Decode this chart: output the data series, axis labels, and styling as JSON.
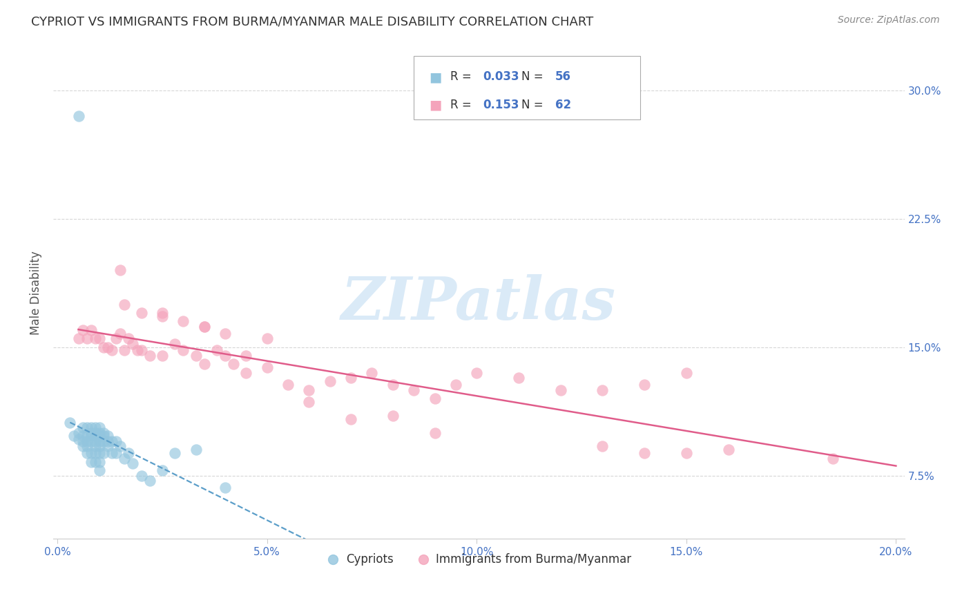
{
  "title": "CYPRIOT VS IMMIGRANTS FROM BURMA/MYANMAR MALE DISABILITY CORRELATION CHART",
  "source": "Source: ZipAtlas.com",
  "ylabel": "Male Disability",
  "xlabel_ticks": [
    "0.0%",
    "5.0%",
    "10.0%",
    "15.0%",
    "20.0%"
  ],
  "xlabel_vals": [
    0.0,
    0.05,
    0.1,
    0.15,
    0.2
  ],
  "ylabel_ticks": [
    "7.5%",
    "15.0%",
    "22.5%",
    "30.0%"
  ],
  "ylabel_vals": [
    0.075,
    0.15,
    0.225,
    0.3
  ],
  "xmin": -0.001,
  "xmax": 0.202,
  "ymin": 0.038,
  "ymax": 0.325,
  "legend_label1": "Cypriots",
  "legend_label2": "Immigrants from Burma/Myanmar",
  "R1": "0.033",
  "N1": "56",
  "R2": "0.153",
  "N2": "62",
  "color1": "#92c5de",
  "color2": "#f4a4bb",
  "trendline1_color": "#5b9ec9",
  "trendline2_color": "#e05c8a",
  "background_color": "#ffffff",
  "grid_color": "#cccccc",
  "watermark": "ZIPatlas",
  "watermark_color": "#daeaf7",
  "title_color": "#333333",
  "axis_label_color": "#4472c4",
  "cypriot_x": [
    0.003,
    0.004,
    0.005,
    0.005,
    0.006,
    0.006,
    0.006,
    0.006,
    0.007,
    0.007,
    0.007,
    0.007,
    0.007,
    0.008,
    0.008,
    0.008,
    0.008,
    0.008,
    0.008,
    0.009,
    0.009,
    0.009,
    0.009,
    0.009,
    0.009,
    0.009,
    0.01,
    0.01,
    0.01,
    0.01,
    0.01,
    0.01,
    0.01,
    0.01,
    0.011,
    0.011,
    0.011,
    0.011,
    0.012,
    0.012,
    0.012,
    0.013,
    0.013,
    0.014,
    0.014,
    0.015,
    0.016,
    0.017,
    0.018,
    0.02,
    0.022,
    0.025,
    0.028,
    0.033,
    0.04,
    0.005
  ],
  "cypriot_y": [
    0.106,
    0.098,
    0.1,
    0.096,
    0.103,
    0.098,
    0.095,
    0.092,
    0.103,
    0.098,
    0.095,
    0.092,
    0.088,
    0.103,
    0.1,
    0.098,
    0.095,
    0.088,
    0.083,
    0.103,
    0.1,
    0.098,
    0.095,
    0.092,
    0.088,
    0.083,
    0.103,
    0.1,
    0.098,
    0.095,
    0.092,
    0.088,
    0.083,
    0.078,
    0.1,
    0.098,
    0.095,
    0.088,
    0.098,
    0.095,
    0.092,
    0.095,
    0.088,
    0.095,
    0.088,
    0.092,
    0.085,
    0.088,
    0.082,
    0.075,
    0.072,
    0.078,
    0.088,
    0.09,
    0.068,
    0.285
  ],
  "burma_x": [
    0.005,
    0.006,
    0.007,
    0.008,
    0.009,
    0.01,
    0.011,
    0.012,
    0.013,
    0.014,
    0.015,
    0.016,
    0.017,
    0.018,
    0.019,
    0.02,
    0.022,
    0.025,
    0.028,
    0.03,
    0.033,
    0.035,
    0.038,
    0.04,
    0.042,
    0.045,
    0.05,
    0.055,
    0.06,
    0.065,
    0.07,
    0.075,
    0.08,
    0.085,
    0.09,
    0.095,
    0.1,
    0.11,
    0.12,
    0.13,
    0.14,
    0.15,
    0.016,
    0.02,
    0.025,
    0.03,
    0.035,
    0.04,
    0.05,
    0.06,
    0.07,
    0.08,
    0.09,
    0.13,
    0.14,
    0.15,
    0.16,
    0.015,
    0.025,
    0.035,
    0.045,
    0.185
  ],
  "burma_y": [
    0.155,
    0.16,
    0.155,
    0.16,
    0.155,
    0.155,
    0.15,
    0.15,
    0.148,
    0.155,
    0.158,
    0.148,
    0.155,
    0.152,
    0.148,
    0.148,
    0.145,
    0.145,
    0.152,
    0.148,
    0.145,
    0.14,
    0.148,
    0.145,
    0.14,
    0.135,
    0.138,
    0.128,
    0.125,
    0.13,
    0.132,
    0.135,
    0.128,
    0.125,
    0.12,
    0.128,
    0.135,
    0.132,
    0.125,
    0.125,
    0.128,
    0.135,
    0.175,
    0.17,
    0.17,
    0.165,
    0.162,
    0.158,
    0.155,
    0.118,
    0.108,
    0.11,
    0.1,
    0.092,
    0.088,
    0.088,
    0.09,
    0.195,
    0.168,
    0.162,
    0.145,
    0.085
  ]
}
